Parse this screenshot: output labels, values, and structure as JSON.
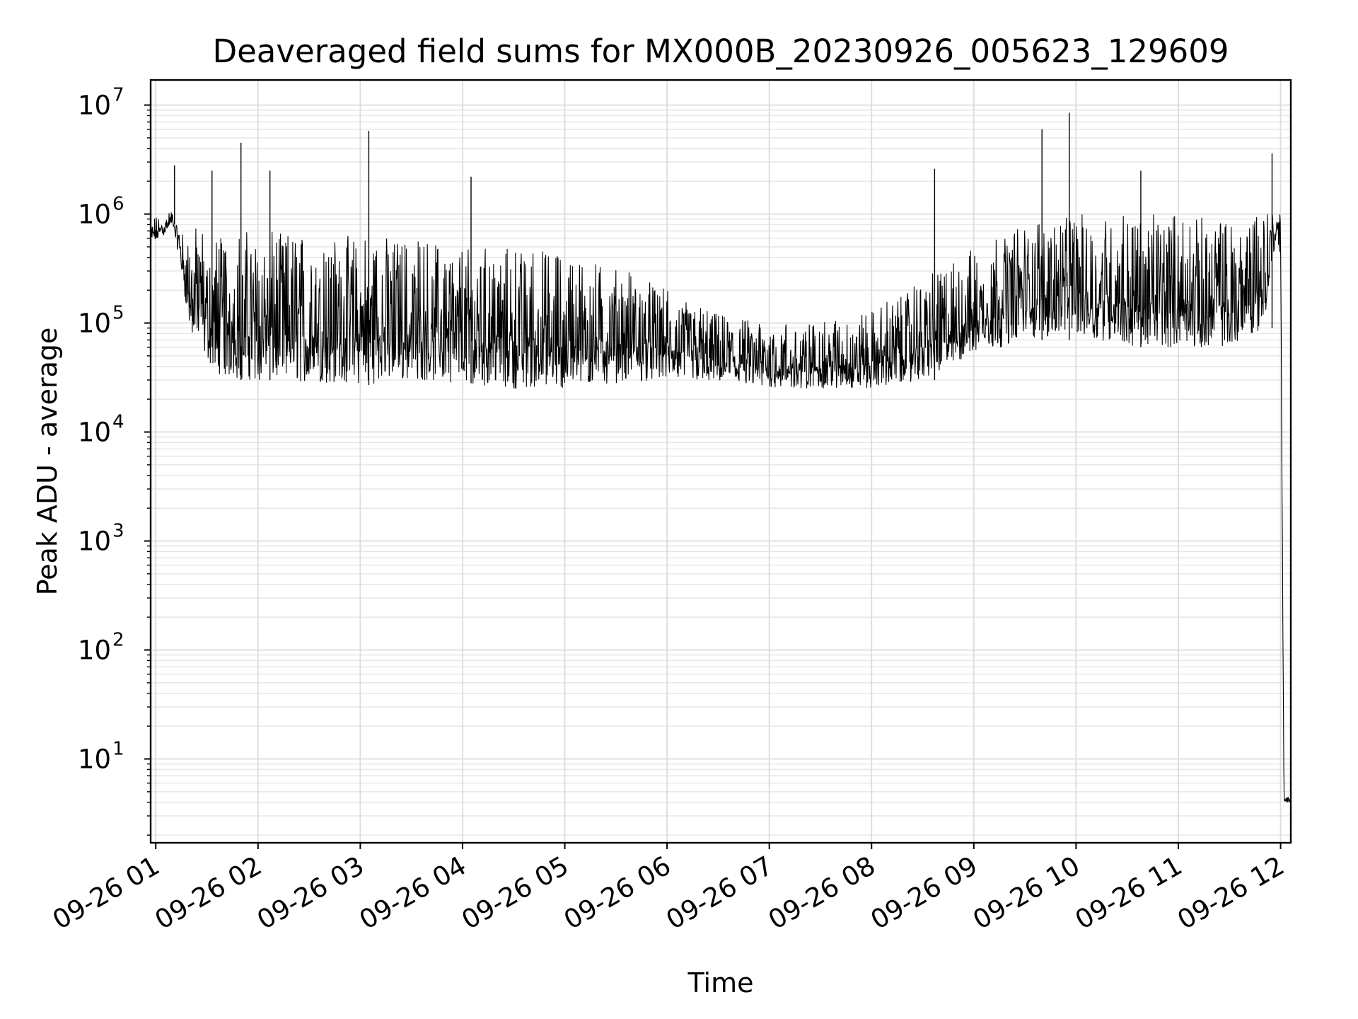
{
  "chart_data": {
    "type": "line",
    "title": "Deaveraged field sums for MX000B_20230926_005623_129609",
    "xlabel": "Time",
    "ylabel": "Peak ADU - average",
    "yscale": "log",
    "ylim": [
      1.7,
      17000000
    ],
    "xlim": [
      "2023-09-26 00:57",
      "2023-09-26 12:06"
    ],
    "grid": "major and minor, light gray",
    "line_color": "#000000",
    "xticks": [
      "09-26 01",
      "09-26 02",
      "09-26 03",
      "09-26 04",
      "09-26 05",
      "09-26 06",
      "09-26 07",
      "09-26 08",
      "09-26 09",
      "09-26 10",
      "09-26 11",
      "09-26 12"
    ],
    "yticks": [
      {
        "value": 10,
        "base": "10",
        "exp": "1"
      },
      {
        "value": 100,
        "base": "10",
        "exp": "2"
      },
      {
        "value": 1000,
        "base": "10",
        "exp": "3"
      },
      {
        "value": 10000,
        "base": "10",
        "exp": "4"
      },
      {
        "value": 100000,
        "base": "10",
        "exp": "5"
      },
      {
        "value": 1000000,
        "base": "10",
        "exp": "6"
      },
      {
        "value": 10000000,
        "base": "10",
        "exp": "7"
      }
    ],
    "series": [
      {
        "x": [
          "2023-09-26 00:57",
          "2023-09-26 01:05",
          "2023-09-26 01:10",
          "2023-09-26 01:15",
          "2023-09-26 01:20",
          "2023-09-26 01:25",
          "2023-09-26 01:35",
          "2023-09-26 01:45",
          "2023-09-26 02:00",
          "2023-09-26 02:30",
          "2023-09-26 03:00",
          "2023-09-26 03:30",
          "2023-09-26 04:00",
          "2023-09-26 04:30",
          "2023-09-26 05:00",
          "2023-09-26 05:30",
          "2023-09-26 06:00",
          "2023-09-26 06:30",
          "2023-09-26 07:00",
          "2023-09-26 07:30",
          "2023-09-26 08:00",
          "2023-09-26 08:30",
          "2023-09-26 09:00",
          "2023-09-26 09:30",
          "2023-09-26 10:00",
          "2023-09-26 10:30",
          "2023-09-26 11:00",
          "2023-09-26 11:30",
          "2023-09-26 11:50",
          "2023-09-26 11:58",
          "2023-09-26 12:00",
          "2023-09-26 12:02",
          "2023-09-26 12:06"
        ],
        "low": [
          500000,
          650000,
          800000,
          300000,
          80000,
          60000,
          35000,
          30000,
          30000,
          28000,
          27000,
          30000,
          28000,
          25000,
          25000,
          28000,
          30000,
          28000,
          25000,
          25000,
          25000,
          30000,
          50000,
          70000,
          80000,
          60000,
          60000,
          60000,
          90000,
          700000,
          300000,
          4,
          4
        ],
        "high": [
          900000,
          1000000,
          1100000,
          700000,
          700000,
          800000,
          700000,
          700000,
          700000,
          650000,
          650000,
          600000,
          550000,
          500000,
          450000,
          350000,
          200000,
          120000,
          100000,
          100000,
          130000,
          250000,
          500000,
          800000,
          1000000,
          1000000,
          1000000,
          900000,
          1200000,
          1100000,
          1000000,
          4.5,
          4.5
        ]
      }
    ],
    "spikes": [
      {
        "x": "2023-09-26 01:11",
        "y": 2800000
      },
      {
        "x": "2023-09-26 01:33",
        "y": 2500000
      },
      {
        "x": "2023-09-26 01:50",
        "y": 4500000
      },
      {
        "x": "2023-09-26 02:07",
        "y": 2500000
      },
      {
        "x": "2023-09-26 03:05",
        "y": 5800000
      },
      {
        "x": "2023-09-26 04:05",
        "y": 2200000
      },
      {
        "x": "2023-09-26 08:37",
        "y": 2600000
      },
      {
        "x": "2023-09-26 09:40",
        "y": 6000000
      },
      {
        "x": "2023-09-26 09:56",
        "y": 8500000
      },
      {
        "x": "2023-09-26 10:38",
        "y": 2500000
      },
      {
        "x": "2023-09-26 11:55",
        "y": 3600000
      }
    ]
  }
}
